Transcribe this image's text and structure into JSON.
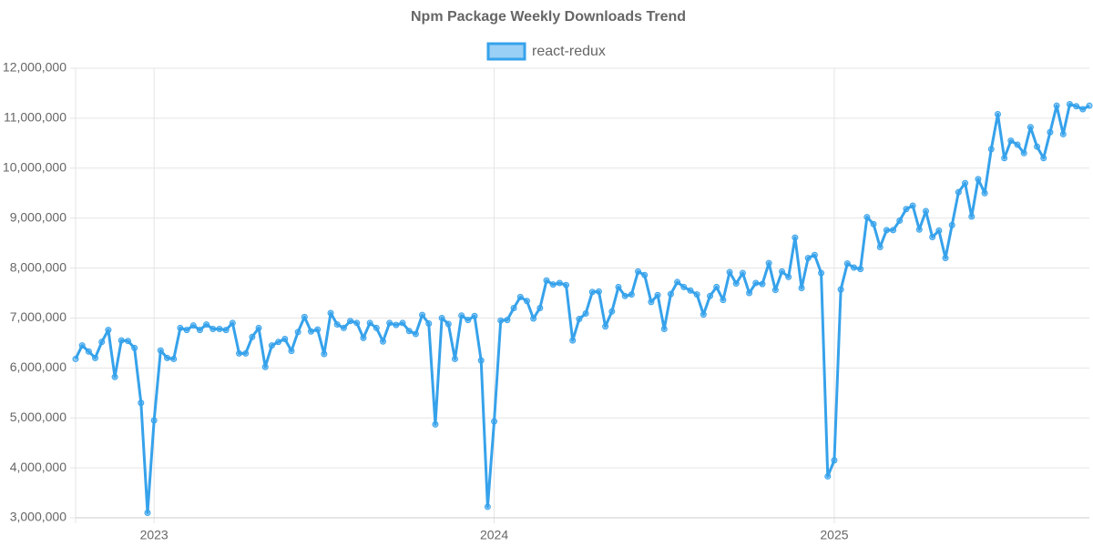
{
  "chart_data": {
    "type": "line",
    "title": "Npm Package Weekly Downloads Trend",
    "categories": [
      null,
      null,
      null,
      null,
      null,
      null,
      null,
      null,
      null,
      null,
      null,
      null,
      "2023",
      null,
      null,
      null,
      null,
      null,
      null,
      null,
      null,
      null,
      null,
      null,
      null,
      null,
      null,
      null,
      null,
      null,
      null,
      null,
      null,
      null,
      null,
      null,
      null,
      null,
      null,
      null,
      null,
      null,
      null,
      null,
      null,
      null,
      null,
      null,
      null,
      null,
      null,
      null,
      null,
      null,
      null,
      null,
      null,
      null,
      null,
      null,
      null,
      null,
      null,
      null,
      "2024",
      null,
      null,
      null,
      null,
      null,
      null,
      null,
      null,
      null,
      null,
      null,
      null,
      null,
      null,
      null,
      null,
      null,
      null,
      null,
      null,
      null,
      null,
      null,
      null,
      null,
      null,
      null,
      null,
      null,
      null,
      null,
      null,
      null,
      null,
      null,
      null,
      null,
      null,
      null,
      null,
      null,
      null,
      null,
      null,
      null,
      null,
      null,
      null,
      null,
      null,
      null,
      "2025",
      null,
      null,
      null,
      null,
      null,
      null,
      null,
      null,
      null,
      null,
      null,
      null,
      null,
      null,
      null,
      null,
      null,
      null,
      null,
      null,
      null,
      null,
      null,
      null,
      null,
      null,
      null,
      null,
      null,
      null,
      null,
      null,
      null,
      null,
      null,
      null,
      null,
      null,
      null
    ],
    "series": [
      {
        "name": "react-redux",
        "color": "#36a2eb",
        "values": [
          6180000,
          6450000,
          6330000,
          6200000,
          6520000,
          6760000,
          5820000,
          6550000,
          6540000,
          6400000,
          5300000,
          3100000,
          4950000,
          6350000,
          6200000,
          6180000,
          6800000,
          6760000,
          6850000,
          6760000,
          6870000,
          6780000,
          6780000,
          6760000,
          6900000,
          6290000,
          6290000,
          6620000,
          6800000,
          6020000,
          6450000,
          6520000,
          6580000,
          6340000,
          6720000,
          7020000,
          6730000,
          6770000,
          6280000,
          7100000,
          6870000,
          6800000,
          6940000,
          6900000,
          6600000,
          6900000,
          6800000,
          6530000,
          6900000,
          6860000,
          6900000,
          6740000,
          6680000,
          7060000,
          6890000,
          4870000,
          7000000,
          6880000,
          6180000,
          7050000,
          6960000,
          7040000,
          6150000,
          3220000,
          4930000,
          6950000,
          6960000,
          7200000,
          7420000,
          7340000,
          6990000,
          7200000,
          7750000,
          7670000,
          7700000,
          7660000,
          6550000,
          6980000,
          7090000,
          7520000,
          7530000,
          6830000,
          7130000,
          7620000,
          7440000,
          7470000,
          7930000,
          7860000,
          7320000,
          7460000,
          6780000,
          7480000,
          7720000,
          7620000,
          7550000,
          7470000,
          7070000,
          7440000,
          7620000,
          7360000,
          7920000,
          7690000,
          7900000,
          7500000,
          7700000,
          7680000,
          8100000,
          7560000,
          7930000,
          7820000,
          8610000,
          7600000,
          8200000,
          8260000,
          7900000,
          3830000,
          4150000,
          7570000,
          8090000,
          8010000,
          7980000,
          9020000,
          8880000,
          8420000,
          8760000,
          8760000,
          8950000,
          9180000,
          9250000,
          8770000,
          9140000,
          8620000,
          8750000,
          8200000,
          8860000,
          9520000,
          9700000,
          9030000,
          9780000,
          9500000,
          10380000,
          11080000,
          10200000,
          10550000,
          10470000,
          10300000,
          10820000,
          10430000,
          10200000,
          10720000,
          11250000,
          10680000,
          11280000,
          11240000,
          11180000,
          11250000
        ]
      }
    ],
    "ylim": [
      3000000,
      12000000
    ],
    "yticks": [
      {
        "value": 3000000,
        "label": "3,000,000"
      },
      {
        "value": 4000000,
        "label": "4,000,000"
      },
      {
        "value": 5000000,
        "label": "5,000,000"
      },
      {
        "value": 6000000,
        "label": "6,000,000"
      },
      {
        "value": 7000000,
        "label": "7,000,000"
      },
      {
        "value": 8000000,
        "label": "8,000,000"
      },
      {
        "value": 9000000,
        "label": "9,000,000"
      },
      {
        "value": 10000000,
        "label": "10,000,000"
      },
      {
        "value": 11000000,
        "label": "11,000,000"
      },
      {
        "value": 12000000,
        "label": "12,000,000"
      }
    ],
    "grid": true,
    "legend": "top"
  }
}
